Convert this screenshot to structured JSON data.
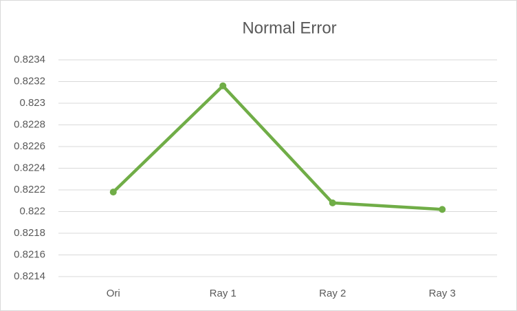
{
  "chart_data": {
    "type": "line",
    "title": "Normal Error",
    "categories": [
      "Ori",
      "Ray 1",
      "Ray 2",
      "Ray 3"
    ],
    "series": [
      {
        "name": "Normal Error",
        "color": "#70ad47",
        "values": [
          0.82218,
          0.82316,
          0.82208,
          0.82202
        ]
      }
    ],
    "ylim": [
      0.8214,
      0.8234
    ],
    "yticks": [
      0.8214,
      0.8216,
      0.8218,
      0.822,
      0.8222,
      0.8224,
      0.8226,
      0.8228,
      0.823,
      0.8232,
      0.8234
    ],
    "grid": true
  }
}
